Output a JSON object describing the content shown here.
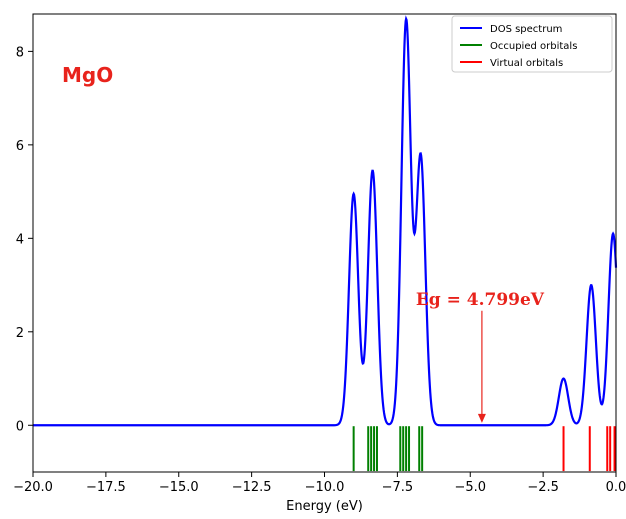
{
  "chart_data": {
    "type": "line",
    "xlabel": "Energy (eV)",
    "ylabel": "",
    "xlim": [
      -20.0,
      0.0
    ],
    "ylim": [
      -1.0,
      8.8
    ],
    "xticks": [
      "−20.0",
      "−17.5",
      "−15.0",
      "−12.5",
      "−10.0",
      "−7.5",
      "−5.0",
      "−2.5",
      "0.0"
    ],
    "xtick_values": [
      -20.0,
      -17.5,
      -15.0,
      -12.5,
      -10.0,
      -7.5,
      -5.0,
      -2.5,
      0.0
    ],
    "yticks": [
      "0",
      "2",
      "4",
      "6",
      "8"
    ],
    "ytick_values": [
      0,
      2,
      4,
      6,
      8
    ],
    "legend_position": "top-right",
    "series": [
      {
        "name": "DOS spectrum",
        "color": "#0000ff",
        "peaks": [
          {
            "center": -9.0,
            "height": 4.95
          },
          {
            "center": -8.35,
            "height": 5.45
          },
          {
            "center": -7.2,
            "height": 8.65
          },
          {
            "center": -6.7,
            "height": 5.75
          },
          {
            "center": -1.8,
            "height": 1.0
          },
          {
            "center": -0.85,
            "height": 3.0
          },
          {
            "center": -0.1,
            "height": 4.1
          }
        ]
      },
      {
        "name": "Occupied orbitals",
        "color": "#008000",
        "x": [
          -9.0,
          -8.5,
          -8.4,
          -8.3,
          -8.2,
          -7.4,
          -7.3,
          -7.2,
          -7.1,
          -6.75,
          -6.65
        ]
      },
      {
        "name": "Virtual orbitals",
        "color": "#ff0000",
        "x": [
          -1.8,
          -0.9,
          -0.3,
          -0.2,
          -0.05
        ]
      }
    ],
    "annotations": [
      {
        "text": "MgO",
        "color": "#e8231c"
      },
      {
        "text": "Eg = 4.799eV",
        "color": "#e8231c",
        "arrow_x": -4.6,
        "arrow_y_from": 2.45,
        "arrow_y_to": 0.05
      }
    ]
  }
}
